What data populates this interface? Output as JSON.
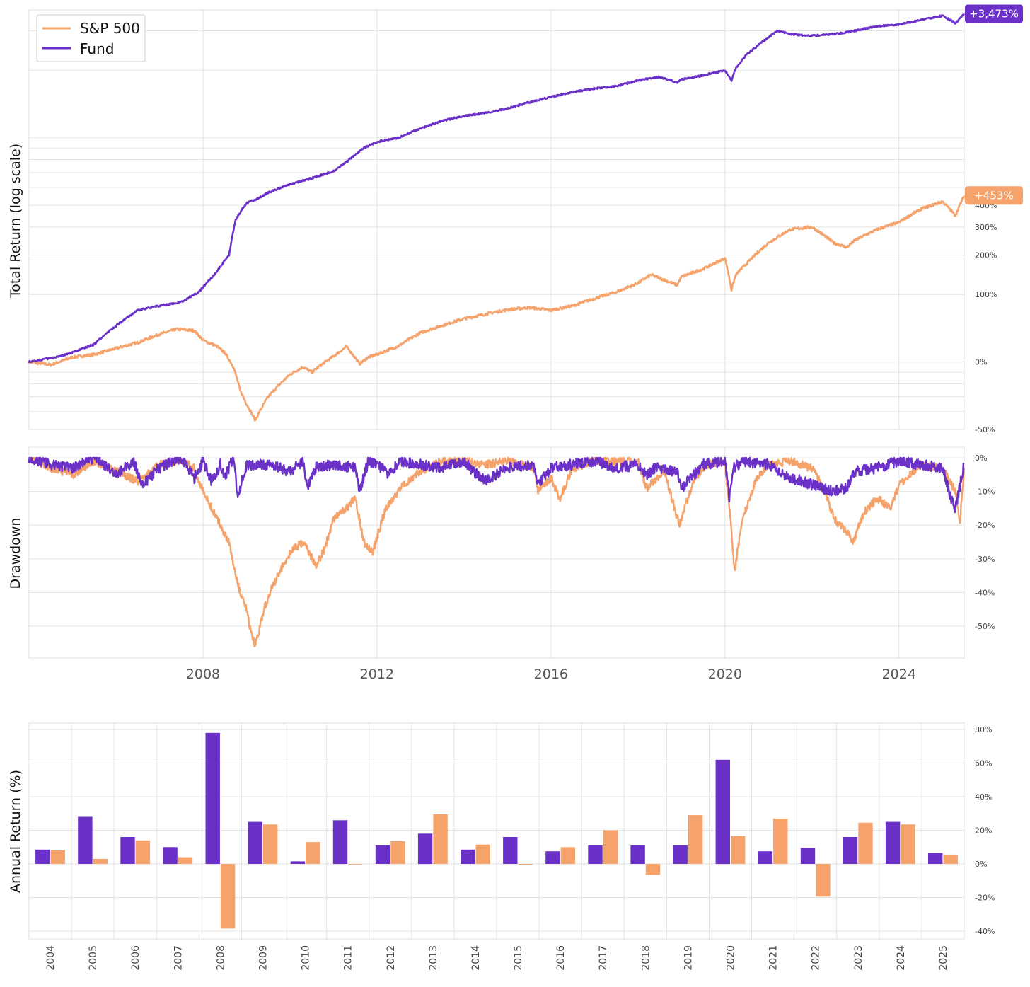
{
  "colors": {
    "sp500": "#F5A36B",
    "fund": "#6A30C8"
  },
  "chart_data": [
    {
      "type": "line",
      "title": "",
      "ylabel": "Total Return (log scale)",
      "yscale": "log",
      "legend": {
        "placement": "top-left",
        "entries": [
          "S&P 500",
          "Fund"
        ]
      },
      "y_ticks": [
        "-50%",
        "0%",
        "100%",
        "200%",
        "300%",
        "400%"
      ],
      "end_labels": {
        "fund": "+3,473%",
        "sp500": "+453%"
      },
      "series": [
        {
          "name": "Fund",
          "x": [
            2004.0,
            2004.5,
            2005.0,
            2005.5,
            2006.0,
            2006.3,
            2006.5,
            2007.0,
            2007.5,
            2007.9,
            2008.0,
            2008.3,
            2008.6,
            2008.75,
            2008.9,
            2009.0,
            2009.3,
            2009.5,
            2010.0,
            2010.5,
            2011.0,
            2011.3,
            2011.7,
            2012.0,
            2012.5,
            2013.0,
            2013.5,
            2014.0,
            2014.5,
            2015.0,
            2015.5,
            2016.0,
            2016.5,
            2017.0,
            2017.5,
            2018.0,
            2018.5,
            2018.9,
            2019.0,
            2019.5,
            2020.0,
            2020.15,
            2020.25,
            2020.5,
            2021.0,
            2021.2,
            2021.5,
            2022.0,
            2022.5,
            2023.0,
            2023.5,
            2024.0,
            2024.5,
            2025.0,
            2025.3,
            2025.5
          ],
          "y": [
            0,
            4,
            10,
            20,
            45,
            60,
            70,
            78,
            85,
            105,
            115,
            150,
            200,
            330,
            380,
            410,
            440,
            470,
            520,
            560,
            610,
            680,
            800,
            860,
            900,
            1000,
            1090,
            1150,
            1190,
            1250,
            1340,
            1420,
            1500,
            1560,
            1600,
            1700,
            1770,
            1660,
            1720,
            1800,
            1900,
            1700,
            1950,
            2250,
            2700,
            2900,
            2800,
            2750,
            2800,
            2900,
            3050,
            3100,
            3250,
            3400,
            3150,
            3473
          ]
        },
        {
          "name": "S&P 500",
          "x": [
            2004.0,
            2004.5,
            2005.0,
            2005.5,
            2006.0,
            2006.5,
            2007.0,
            2007.4,
            2007.8,
            2008.0,
            2008.3,
            2008.5,
            2008.7,
            2008.85,
            2009.0,
            2009.2,
            2009.5,
            2010.0,
            2010.3,
            2010.5,
            2011.0,
            2011.3,
            2011.6,
            2011.8,
            2012.0,
            2012.5,
            2013.0,
            2014.0,
            2015.0,
            2015.5,
            2016.0,
            2016.5,
            2017.0,
            2017.5,
            2018.0,
            2018.3,
            2018.9,
            2019.0,
            2019.5,
            2020.0,
            2020.15,
            2020.25,
            2020.5,
            2021.0,
            2021.5,
            2022.0,
            2022.5,
            2022.8,
            2023.0,
            2023.5,
            2024.0,
            2024.5,
            2025.0,
            2025.3,
            2025.5
          ],
          "y": [
            0,
            -3,
            5,
            8,
            15,
            22,
            33,
            40,
            38,
            25,
            18,
            10,
            -5,
            -25,
            -35,
            -45,
            -30,
            -12,
            -5,
            -10,
            6,
            17,
            -2,
            5,
            8,
            18,
            35,
            56,
            71,
            75,
            70,
            78,
            92,
            105,
            125,
            145,
            120,
            140,
            160,
            190,
            110,
            145,
            175,
            240,
            290,
            300,
            240,
            225,
            250,
            290,
            320,
            380,
            420,
            350,
            453
          ]
        }
      ]
    },
    {
      "type": "line",
      "title": "",
      "ylabel": "Drawdown",
      "y_ticks": [
        "0%",
        "-10%",
        "-20%",
        "-30%",
        "-40%",
        "-50%"
      ],
      "x_ticks": [
        "2008",
        "2012",
        "2016",
        "2020",
        "2024"
      ],
      "series": [
        {
          "name": "Fund",
          "x": [
            2004.0,
            2004.5,
            2005.0,
            2005.5,
            2006.0,
            2006.4,
            2006.6,
            2007.0,
            2007.5,
            2007.8,
            2008.0,
            2008.2,
            2008.4,
            2008.5,
            2008.7,
            2008.8,
            2009.0,
            2009.5,
            2010.0,
            2010.3,
            2010.4,
            2010.6,
            2011.0,
            2011.5,
            2011.6,
            2011.8,
            2012.0,
            2012.3,
            2012.5,
            2013.0,
            2013.5,
            2014.0,
            2014.3,
            2014.5,
            2015.0,
            2015.6,
            2015.7,
            2016.0,
            2016.5,
            2017.0,
            2017.5,
            2018.0,
            2018.2,
            2018.4,
            2018.9,
            2019.0,
            2019.5,
            2020.0,
            2020.1,
            2020.2,
            2020.4,
            2021.0,
            2021.5,
            2021.8,
            2022.0,
            2022.5,
            2022.8,
            2023.0,
            2023.5,
            2024.0,
            2024.5,
            2025.0,
            2025.2,
            2025.3,
            2025.5
          ],
          "y": [
            0,
            -2,
            -3,
            0,
            -5,
            -1,
            -8,
            -3,
            0,
            -6,
            -1,
            -7,
            -2,
            -6,
            0,
            -12,
            -2,
            -2,
            -4,
            -1,
            -9,
            -3,
            -2,
            -3,
            -10,
            -1,
            -2,
            -5,
            -1,
            -2,
            -3,
            -1,
            -5,
            -7,
            -3,
            -2,
            -8,
            -3,
            -2,
            -1,
            -3,
            -2,
            -5,
            -3,
            -4,
            -9,
            -2,
            -1,
            -12,
            -3,
            -1,
            -2,
            -6,
            -7,
            -8,
            -10,
            -9,
            -4,
            -3,
            -1,
            -2,
            -3,
            -12,
            -15,
            -2
          ]
        },
        {
          "name": "S&P 500",
          "x": [
            2004.0,
            2004.5,
            2005.0,
            2005.5,
            2006.0,
            2006.5,
            2007.0,
            2007.5,
            2007.8,
            2008.0,
            2008.2,
            2008.4,
            2008.6,
            2008.75,
            2008.85,
            2009.0,
            2009.1,
            2009.2,
            2009.4,
            2009.6,
            2010.0,
            2010.3,
            2010.6,
            2010.8,
            2011.0,
            2011.3,
            2011.5,
            2011.7,
            2011.9,
            2012.2,
            2012.6,
            2013.0,
            2013.5,
            2014.0,
            2014.5,
            2015.0,
            2015.6,
            2015.7,
            2016.0,
            2016.2,
            2016.5,
            2017.0,
            2018.0,
            2018.2,
            2018.6,
            2018.95,
            2019.3,
            2019.6,
            2020.0,
            2020.15,
            2020.22,
            2020.4,
            2020.7,
            2021.0,
            2021.5,
            2022.0,
            2022.3,
            2022.5,
            2022.8,
            2022.95,
            2023.2,
            2023.5,
            2023.8,
            2024.0,
            2024.5,
            2025.0,
            2025.3,
            2025.4,
            2025.5
          ],
          "y": [
            0,
            -3,
            -5,
            -1,
            -4,
            -7,
            -2,
            -1,
            -3,
            -10,
            -15,
            -20,
            -25,
            -35,
            -40,
            -45,
            -52,
            -56,
            -45,
            -38,
            -28,
            -25,
            -32,
            -27,
            -18,
            -15,
            -12,
            -25,
            -28,
            -15,
            -8,
            -4,
            -1,
            -1,
            -2,
            -1,
            -3,
            -10,
            -6,
            -12,
            -3,
            -1,
            -1,
            -9,
            -4,
            -20,
            -6,
            -2,
            -1,
            -22,
            -34,
            -18,
            -7,
            -2,
            -1,
            -3,
            -10,
            -18,
            -22,
            -25,
            -16,
            -12,
            -15,
            -8,
            -2,
            -3,
            -10,
            -19,
            -3
          ]
        }
      ]
    },
    {
      "type": "bar",
      "title": "",
      "ylabel": "Annual Return (%)",
      "ylim": [
        -40,
        80
      ],
      "y_ticks": [
        "80%",
        "60%",
        "40%",
        "20%",
        "0%",
        "-20%",
        "-40%"
      ],
      "categories": [
        "2004",
        "2005",
        "2006",
        "2007",
        "2008",
        "2009",
        "2010",
        "2011",
        "2012",
        "2013",
        "2014",
        "2015",
        "2016",
        "2017",
        "2018",
        "2019",
        "2020",
        "2021",
        "2022",
        "2023",
        "2024",
        "2025"
      ],
      "series": [
        {
          "name": "Fund",
          "values": [
            8.5,
            28,
            16,
            10,
            78,
            25,
            1.5,
            26,
            11,
            18,
            8.5,
            16,
            7.5,
            11,
            11,
            11,
            62,
            7.5,
            9.5,
            16,
            25,
            6.5
          ]
        },
        {
          "name": "S&P 500",
          "values": [
            8,
            3,
            14,
            4,
            -38.5,
            23.5,
            13,
            0,
            13.5,
            29.5,
            11.5,
            -0.5,
            10,
            20,
            -6.5,
            29,
            16.5,
            27,
            -19.5,
            24.5,
            23.5,
            5.5
          ]
        }
      ]
    }
  ]
}
